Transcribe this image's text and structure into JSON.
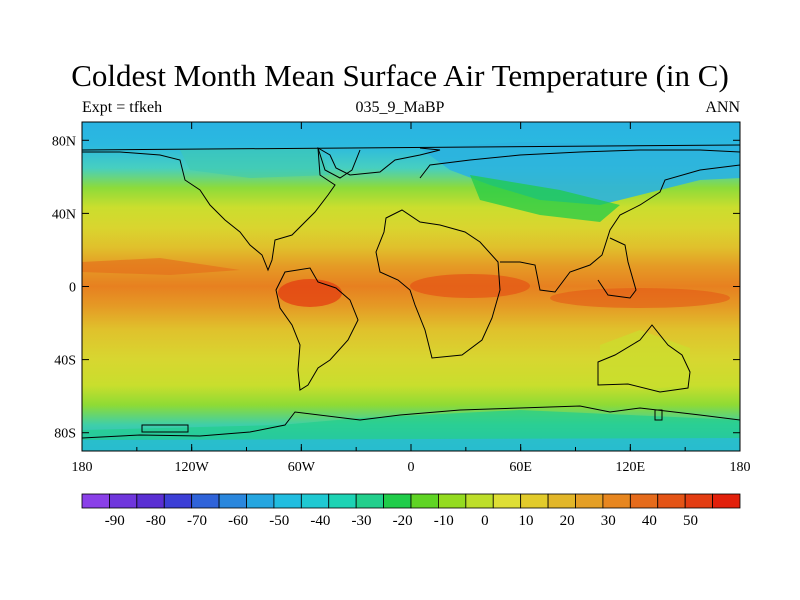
{
  "title": "Coldest Month Mean Surface Air Temperature (in C)",
  "subtitle_left": "Expt = tfkeh",
  "subtitle_center": "035_9_MaBP",
  "subtitle_right": "ANN",
  "map": {
    "lon_range": [
      -180,
      180
    ],
    "lat_range": [
      -90,
      90
    ],
    "lon_ticks": [
      {
        "value": -180,
        "label": "180"
      },
      {
        "value": -120,
        "label": "120W"
      },
      {
        "value": -60,
        "label": "60W"
      },
      {
        "value": 0,
        "label": "0"
      },
      {
        "value": 60,
        "label": "60E"
      },
      {
        "value": 120,
        "label": "120E"
      },
      {
        "value": 180,
        "label": "180"
      }
    ],
    "lat_ticks": [
      {
        "value": 80,
        "label": "80N"
      },
      {
        "value": 40,
        "label": "40N"
      },
      {
        "value": 0,
        "label": "0"
      },
      {
        "value": -40,
        "label": "40S"
      },
      {
        "value": -80,
        "label": "80S"
      }
    ]
  },
  "colorbar": {
    "labels": [
      "-90",
      "-80",
      "-70",
      "-60",
      "-50",
      "-40",
      "-30",
      "-20",
      "-10",
      "0",
      "10",
      "20",
      "30",
      "40",
      "50"
    ],
    "colors": [
      "#8a40e8",
      "#6f36dc",
      "#5a2fd3",
      "#3c3fd6",
      "#2f63d9",
      "#2a87dd",
      "#26a6e0",
      "#21bde0",
      "#1fc9d2",
      "#1dd3b4",
      "#22cf8c",
      "#20cc4a",
      "#5fd424",
      "#94db20",
      "#bdde2a",
      "#dede35",
      "#e2cb2b",
      "#e2b629",
      "#e59f25",
      "#e7861f",
      "#e56b1b",
      "#e45416",
      "#e33d12",
      "#e2200b"
    ]
  }
}
